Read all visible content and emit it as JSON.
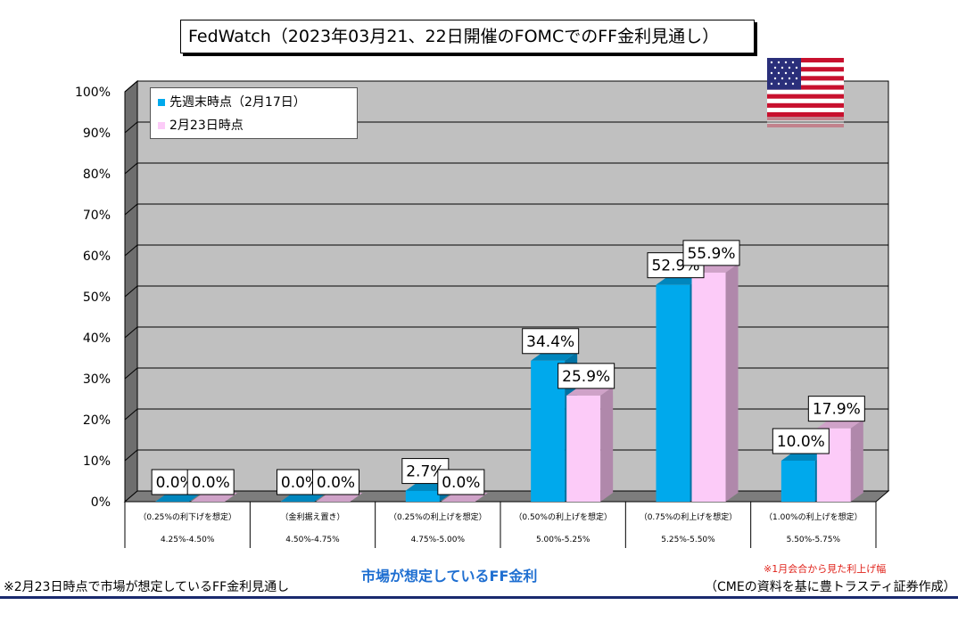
{
  "title": "FedWatch（2023年03月21、22日開催のFOMCでのFF金利見通し）",
  "chart_data": {
    "type": "bar",
    "categories": [
      "4.25%-4.50%",
      "4.50%-4.75%",
      "4.75%-5.00%",
      "5.00%-5.25%",
      "5.25%-5.50%",
      "5.50%-5.75%"
    ],
    "category_notes": [
      "（0.25%の利下げを想定）",
      "（金利据え置き）",
      "（0.25%の利上げを想定）",
      "（0.50%の利上げを想定）",
      "（0.75%の利上げを想定）",
      "（1.00%の利上げを想定）"
    ],
    "series": [
      {
        "name": "先週末時点（2月17日）",
        "values": [
          0.0,
          0.0,
          2.7,
          34.4,
          52.9,
          10.0
        ],
        "labels": [
          "0.0%",
          "0.0%",
          "2.7%",
          "34.4%",
          "52.9%",
          "10.0%"
        ],
        "color": "#00a9ec",
        "top_color": "#0086bd",
        "side_color": "#0072a3"
      },
      {
        "name": "2月23日時点",
        "values": [
          0.0,
          0.0,
          0.0,
          25.9,
          55.9,
          17.9
        ],
        "labels": [
          "0.0%",
          "0.0%",
          "0.0%",
          "25.9%",
          "55.9%",
          "17.9%"
        ],
        "color": "#fccbf8",
        "top_color": "#cfa2c8",
        "side_color": "#b088ab"
      }
    ],
    "ylim": [
      0,
      100
    ],
    "yticks": [
      "0%",
      "10%",
      "20%",
      "30%",
      "40%",
      "50%",
      "60%",
      "70%",
      "80%",
      "90%",
      "100%"
    ],
    "grid": true,
    "legend_position": "top-left",
    "plot_bg": "#c0c0c0"
  },
  "footer": {
    "left_note": "※2月23日時点で市場が想定しているFF金利見通し",
    "axis_caption": "市場が想定しているFF金利",
    "note": "※1月会合から見た利上げ幅",
    "source": "（CMEの資料を基に豊トラスティ証券作成）"
  }
}
